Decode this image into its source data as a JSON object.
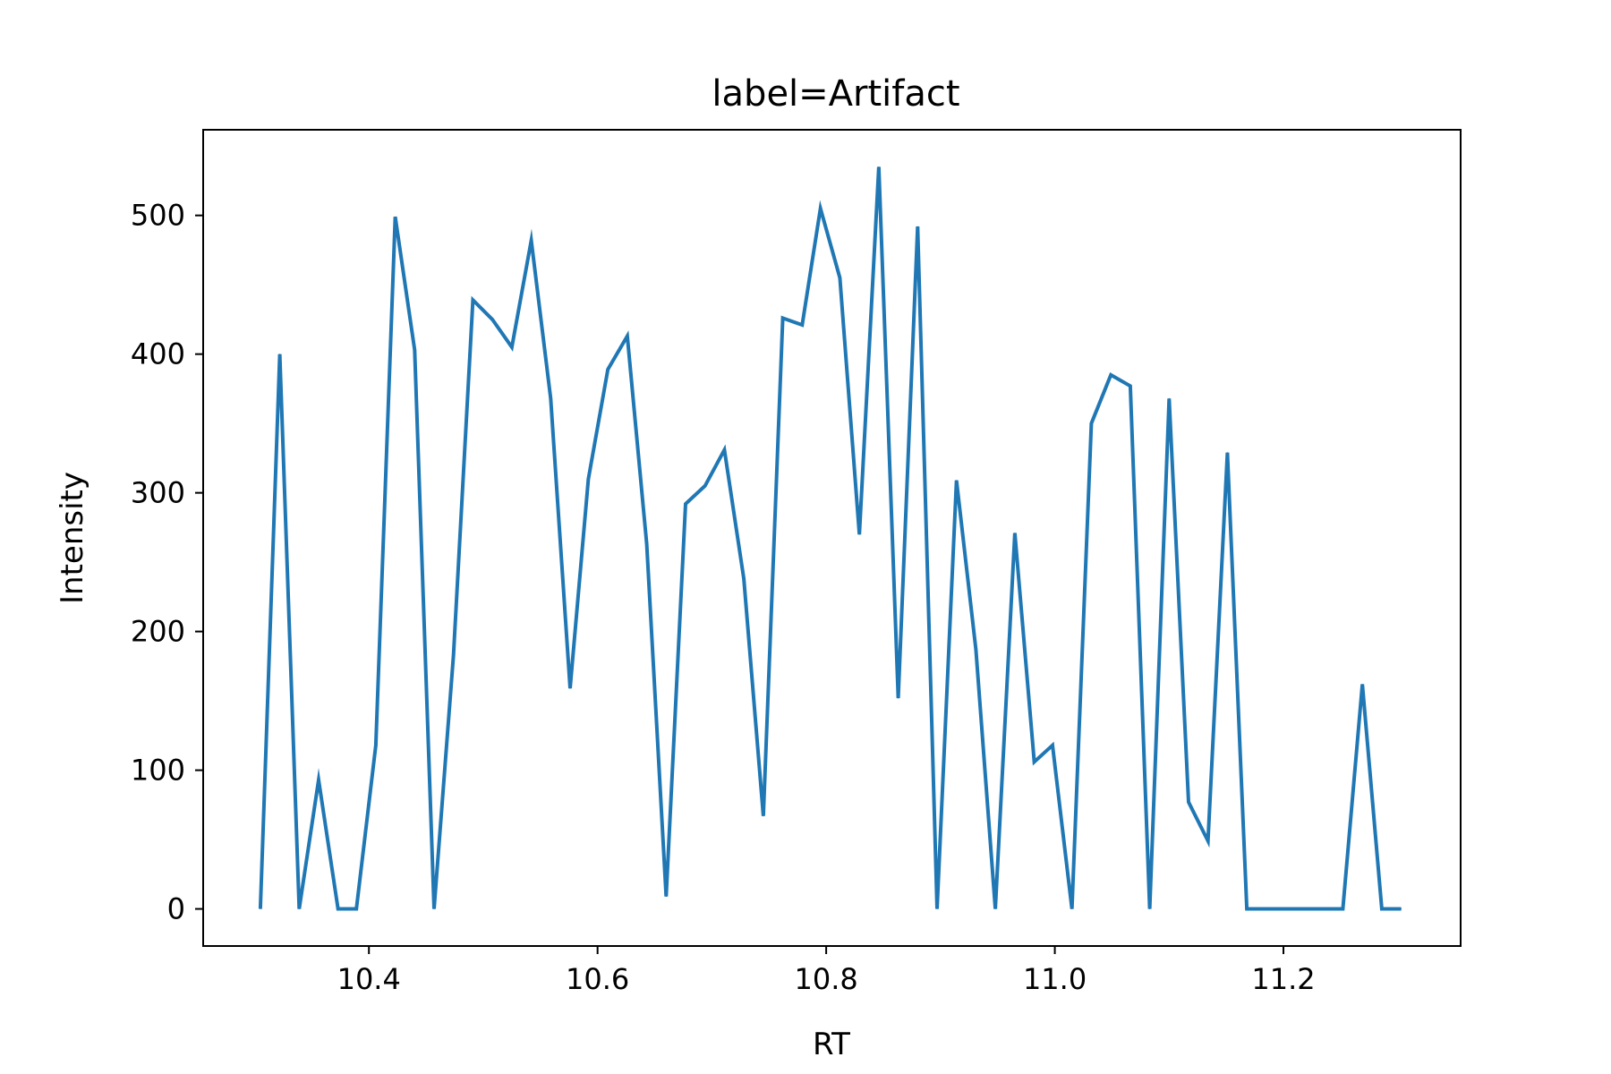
{
  "chart_data": {
    "type": "line",
    "title": "label=Artifact",
    "xlabel": "RT",
    "ylabel": "Intensity",
    "xlim": [
      10.255,
      11.355
    ],
    "ylim": [
      -26.75,
      561.75
    ],
    "xticks": [
      "10.4",
      "10.6",
      "10.8",
      "11.0",
      "11.2"
    ],
    "xtick_values": [
      10.4,
      10.6,
      10.8,
      11.0,
      11.2
    ],
    "yticks": [
      "0",
      "100",
      "200",
      "300",
      "400",
      "500"
    ],
    "ytick_values": [
      0,
      100,
      200,
      300,
      400,
      500
    ],
    "grid": false,
    "color": "#1f77b4",
    "series": [
      {
        "x": [
          10.305,
          10.322,
          10.339,
          10.356,
          10.373,
          10.389,
          10.406,
          10.423,
          10.44,
          10.457,
          10.474,
          10.491,
          10.508,
          10.525,
          10.542,
          10.559,
          10.576,
          10.592,
          10.609,
          10.626,
          10.643,
          10.66,
          10.677,
          10.694,
          10.711,
          10.728,
          10.745,
          10.762,
          10.779,
          10.795,
          10.812,
          10.829,
          10.846,
          10.863,
          10.88,
          10.897,
          10.914,
          10.931,
          10.948,
          10.965,
          10.982,
          10.998,
          11.015,
          11.032,
          11.049,
          11.066,
          11.083,
          11.1,
          11.117,
          11.134,
          11.151,
          11.168,
          11.185,
          11.201,
          11.218,
          11.235,
          11.252,
          11.269,
          11.286,
          11.303
        ],
        "values": [
          0,
          400,
          0,
          93,
          0,
          0,
          118,
          499,
          403,
          0,
          183,
          439,
          425,
          405,
          482,
          368,
          159,
          310,
          389,
          413,
          263,
          9,
          292,
          305,
          331,
          238,
          67,
          426,
          421,
          505,
          455,
          270,
          535,
          152,
          492,
          0,
          309,
          187,
          0,
          271,
          106,
          118,
          0,
          350,
          385,
          377,
          0,
          368,
          77,
          49,
          329,
          0,
          0,
          0,
          0,
          0,
          0,
          162,
          0,
          0
        ]
      }
    ]
  }
}
